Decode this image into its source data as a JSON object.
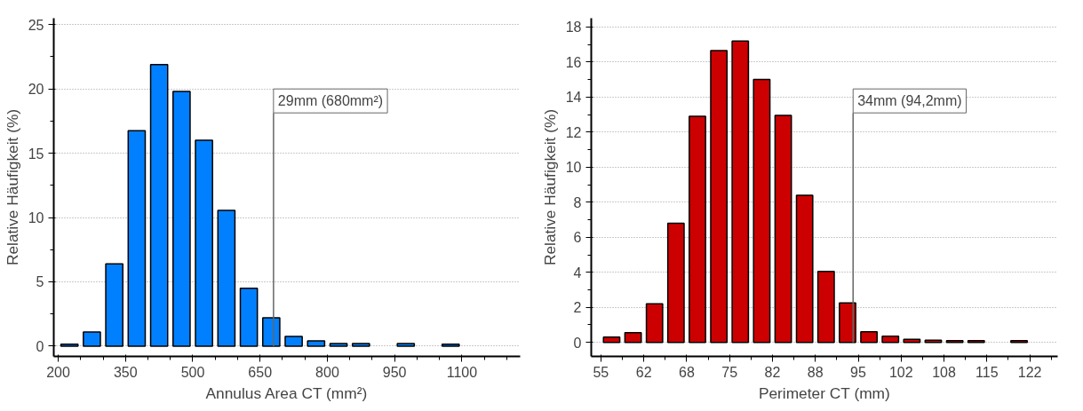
{
  "chart_data": [
    {
      "type": "histogram",
      "xlabel": "Annulus Area CT (mm²)",
      "ylabel": "Relative Häufigkeit (%)",
      "bins": [
        200,
        250,
        300,
        350,
        400,
        450,
        500,
        550,
        600,
        650,
        700,
        750,
        800,
        850,
        900,
        950,
        1000,
        1050,
        1100,
        1150,
        1200
      ],
      "values": [
        0.15,
        1.1,
        6.4,
        16.75,
        21.9,
        19.8,
        16.0,
        10.55,
        4.5,
        2.2,
        0.75,
        0.4,
        0.2,
        0.2,
        0,
        0.2,
        0,
        0.15,
        0,
        0
      ],
      "color": "#0080ff",
      "xlim": [
        190,
        1230
      ],
      "xticks": [
        200,
        350,
        500,
        650,
        800,
        950,
        1100
      ],
      "ylim": [
        -0.8,
        25.5
      ],
      "yticks": [
        0,
        5,
        10,
        15,
        20,
        25
      ],
      "grid": "y",
      "ref_lines": [
        {
          "axis": "x",
          "value": 680,
          "label": "29mm (680mm²)"
        }
      ]
    },
    {
      "type": "histogram",
      "xlabel": "Perimeter CT (mm)",
      "ylabel": "Relative Häufigkeit (%)",
      "bins": [
        55,
        58.33,
        61.67,
        65,
        68.33,
        71.67,
        75,
        78.33,
        81.67,
        85,
        88.33,
        91.67,
        95,
        98.33,
        101.67,
        105,
        108.33,
        111.67,
        115,
        118.33,
        121.67,
        125
      ],
      "values": [
        0.3,
        0.55,
        2.2,
        6.8,
        12.9,
        16.65,
        17.2,
        15.0,
        12.95,
        8.4,
        4.05,
        2.25,
        0.6,
        0.35,
        0.17,
        0.12,
        0.1,
        0.1,
        0,
        0.1,
        0
      ],
      "color": "#cc0000",
      "xlim": [
        53.5,
        126
      ],
      "xticks": [
        55,
        {
          "value": 61.67,
          "label": "62"
        },
        {
          "value": 68.33,
          "label": "68"
        },
        75,
        {
          "value": 81.67,
          "label": "82"
        },
        {
          "value": 88.33,
          "label": "88"
        },
        95,
        {
          "value": 101.67,
          "label": "102"
        },
        {
          "value": 108.33,
          "label": "108"
        },
        115,
        {
          "value": 121.67,
          "label": "122"
        }
      ],
      "ylim": [
        -0.8,
        18.5
      ],
      "yticks": [
        0,
        2,
        4,
        6,
        8,
        10,
        12,
        14,
        16,
        18
      ],
      "grid": "y",
      "ref_lines": [
        {
          "axis": "x",
          "value": 94.2,
          "label": "34mm (94,2mm)"
        }
      ]
    }
  ]
}
